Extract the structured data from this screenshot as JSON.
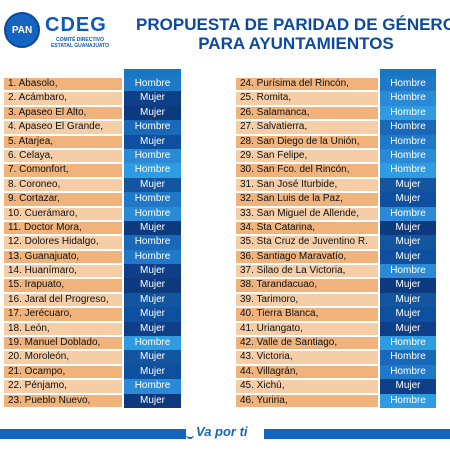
{
  "header": {
    "logo_text": "PAN",
    "org_name_main": "CDEG",
    "org_subtitle_1": "COMITÉ DIRECTIVO",
    "org_subtitle_2": "ESTATAL GUANAJUATO",
    "title_line1": "PROPUESTA DE PARIDAD DE GÉNERO",
    "title_line2": "PARA AYUNTAMIENTOS"
  },
  "colors": {
    "hombre": [
      "#1f78c8",
      "#2b8ad6",
      "#2f9be0",
      "#1a68b8"
    ],
    "mujer": [
      "#0e4fa0",
      "#103f8a",
      "#0d3a7e",
      "#14559f"
    ]
  },
  "left_table": [
    {
      "name": "1. Abasolo,",
      "gender": "Hombre"
    },
    {
      "name": "2. Acámbaro,",
      "gender": "Mujer"
    },
    {
      "name": "3. Apaseo El Alto,",
      "gender": "Mujer"
    },
    {
      "name": "4. Apaseo El Grande,",
      "gender": "Hombre"
    },
    {
      "name": "5. Atarjea,",
      "gender": "Mujer"
    },
    {
      "name": "6. Celaya,",
      "gender": "Hombre"
    },
    {
      "name": "7. Comonfort,",
      "gender": "Hombre"
    },
    {
      "name": "8. Coroneo,",
      "gender": "Mujer"
    },
    {
      "name": "9. Cortazar,",
      "gender": "Hombre"
    },
    {
      "name": "10. Cuerámaro,",
      "gender": "Hombre"
    },
    {
      "name": "11. Doctor Mora,",
      "gender": "Mujer"
    },
    {
      "name": "12. Dolores Hidalgo,",
      "gender": "Hombre"
    },
    {
      "name": "13. Guanajuato,",
      "gender": "Hombre"
    },
    {
      "name": "14. Huanímaro,",
      "gender": "Mujer"
    },
    {
      "name": "15. Irapuato,",
      "gender": "Mujer"
    },
    {
      "name": "16. Jaral del Progreso,",
      "gender": "Mujer"
    },
    {
      "name": "17. Jerécuaro,",
      "gender": "Mujer"
    },
    {
      "name": "18. León,",
      "gender": "Mujer"
    },
    {
      "name": "19. Manuel Doblado,",
      "gender": "Hombre"
    },
    {
      "name": "20. Moroleón,",
      "gender": "Mujer"
    },
    {
      "name": "21. Ocampo,",
      "gender": "Mujer"
    },
    {
      "name": "22. Pénjamo,",
      "gender": "Hombre"
    },
    {
      "name": "23. Pueblo Nuevo,",
      "gender": "Mujer"
    }
  ],
  "right_table": [
    {
      "name": "24. Purísima del Rincón,",
      "gender": "Hombre"
    },
    {
      "name": "25. Romita,",
      "gender": "Hombre"
    },
    {
      "name": "26. Salamanca,",
      "gender": "Hombre"
    },
    {
      "name": "27. Salvatierra,",
      "gender": "Hombre"
    },
    {
      "name": "28. San Diego de la Unión,",
      "gender": "Hombre"
    },
    {
      "name": "29. San Felipe,",
      "gender": "Hombre"
    },
    {
      "name": "30. San Fco. del Rincón,",
      "gender": "Hombre"
    },
    {
      "name": "31. San José Iturbide,",
      "gender": "Mujer"
    },
    {
      "name": "32. San Luis de la Paz,",
      "gender": "Mujer"
    },
    {
      "name": "33. San Miguel de Allende,",
      "gender": "Hombre"
    },
    {
      "name": "34. Sta Catarina,",
      "gender": "Mujer"
    },
    {
      "name": "35. Sta Cruz de Juventino R.",
      "gender": "Mujer"
    },
    {
      "name": "36. Santiago Maravatío,",
      "gender": "Mujer"
    },
    {
      "name": "37. Silao de La Victoria,",
      "gender": "Hombre"
    },
    {
      "name": "38. Tarandacuao,",
      "gender": "Mujer"
    },
    {
      "name": "39. Tarimoro,",
      "gender": "Mujer"
    },
    {
      "name": "40. Tierra Blanca,",
      "gender": "Mujer"
    },
    {
      "name": "41. Uriangato,",
      "gender": "Mujer"
    },
    {
      "name": "42. Valle de Santiago,",
      "gender": "Hombre"
    },
    {
      "name": "43. Victoria,",
      "gender": "Hombre"
    },
    {
      "name": "44. Villagrán,",
      "gender": "Hombre"
    },
    {
      "name": "45. Xichú,",
      "gender": "Mujer"
    },
    {
      "name": "46. Yuriria,",
      "gender": "Hombre"
    }
  ],
  "footer": {
    "slogan": "Va por ti"
  }
}
